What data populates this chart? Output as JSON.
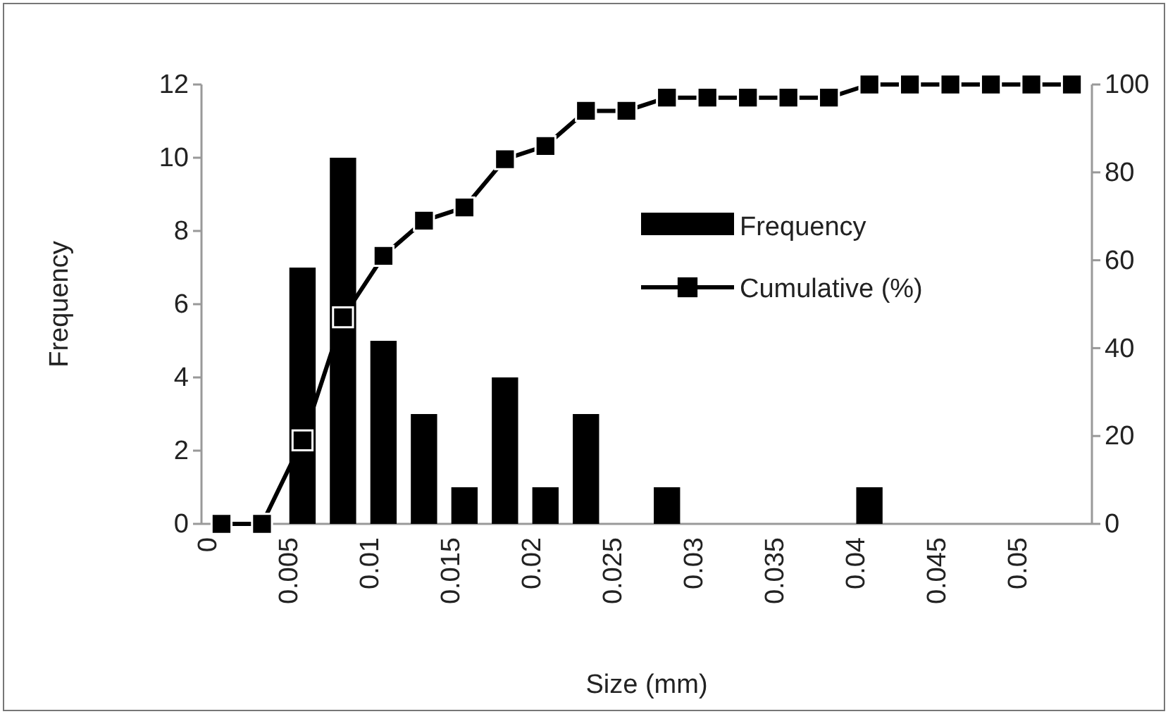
{
  "chart_data": {
    "type": "bar",
    "xlabel": "Size (mm)",
    "ylabel": "Frequency",
    "categories": [
      "0",
      null,
      "0.005",
      null,
      "0.01",
      null,
      "0.015",
      null,
      "0.02",
      null,
      "0.025",
      null,
      "0.03",
      null,
      "0.035",
      null,
      "0.04",
      null,
      "0.045",
      null,
      "0.05",
      null
    ],
    "series": [
      {
        "name": "Frequency",
        "color": "#000000",
        "values": [
          0,
          0,
          7,
          10,
          5,
          3,
          1,
          4,
          1,
          3,
          0,
          1,
          0,
          0,
          0,
          0,
          1,
          0,
          0,
          0,
          0,
          0
        ]
      },
      {
        "name": "Cumulative (%)",
        "type": "line",
        "axis": "y2",
        "color": "#000000",
        "values": [
          0,
          0,
          19,
          47,
          61,
          69,
          72,
          83,
          86,
          94,
          94,
          97,
          97,
          97,
          97,
          97,
          100,
          100,
          100,
          100,
          100,
          100
        ]
      }
    ],
    "ylim": [
      0,
      12
    ],
    "yticks": [
      0,
      2,
      4,
      6,
      8,
      10,
      12
    ],
    "y2lim": [
      0,
      100
    ],
    "y2ticks": [
      0,
      20,
      40,
      60,
      80,
      100
    ],
    "grid": false,
    "legend": "right",
    "marker": "square",
    "line_style": "solid"
  }
}
